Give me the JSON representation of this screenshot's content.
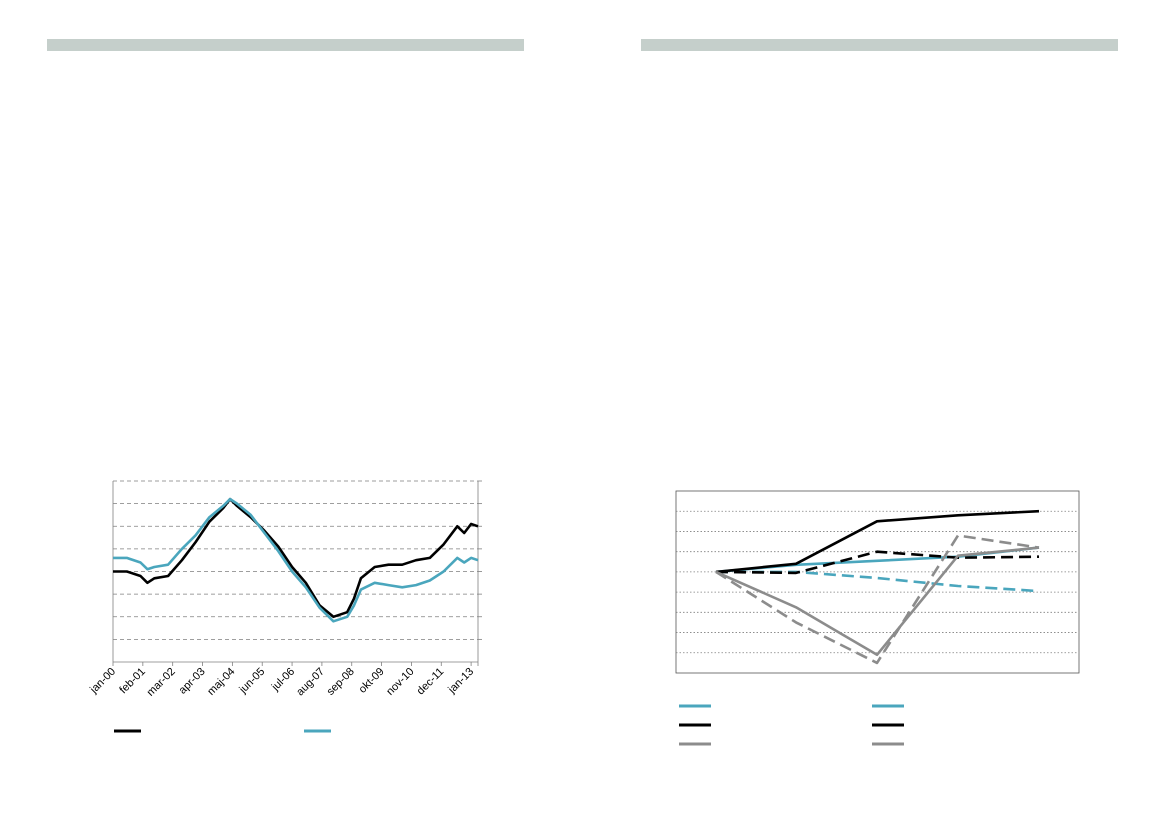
{
  "colors": {
    "header_bar": "#c5cfcb",
    "black_series": "#000000",
    "teal_series": "#4aa6bd",
    "gray_series": "#8c8c8c",
    "gridline": "#7f7f7f"
  },
  "chart_data": [
    {
      "type": "line",
      "x_tick_labels": [
        "jan-00",
        "feb-01",
        "mar-02",
        "apr-03",
        "maj-04",
        "jun-05",
        "jul-06",
        "aug-07",
        "sep-08",
        "okt-09",
        "nov-10",
        "dec-11",
        "jan-13"
      ],
      "grid": true,
      "grid_style": "dashed",
      "y_gridline_count": 8,
      "y_tick_labels_visible": false,
      "legend_position": "bottom",
      "series": [
        {
          "color": "#000000",
          "style": "solid",
          "x": [
            "2000-01",
            "2000-07",
            "2001-01",
            "2001-04",
            "2001-07",
            "2002-01",
            "2002-07",
            "2003-01",
            "2003-07",
            "2004-01",
            "2004-04",
            "2004-07",
            "2005-01",
            "2005-07",
            "2006-01",
            "2006-07",
            "2007-01",
            "2007-07",
            "2008-01",
            "2008-07",
            "2008-10",
            "2009-01",
            "2009-07",
            "2010-01",
            "2010-07",
            "2011-01",
            "2011-07",
            "2012-01",
            "2012-07",
            "2012-10",
            "2013-01",
            "2013-04"
          ],
          "values": [
            0.0,
            0.0,
            -0.2,
            -0.5,
            -0.3,
            -0.2,
            0.5,
            1.3,
            2.2,
            2.8,
            3.2,
            2.9,
            2.4,
            1.8,
            1.1,
            0.2,
            -0.5,
            -1.5,
            -2.0,
            -1.8,
            -1.2,
            -0.3,
            0.2,
            0.3,
            0.3,
            0.5,
            0.6,
            1.2,
            2.0,
            1.7,
            2.1,
            2.0
          ]
        },
        {
          "color": "#4aa6bd",
          "style": "solid",
          "x": [
            "2000-01",
            "2000-07",
            "2001-01",
            "2001-04",
            "2001-07",
            "2002-01",
            "2002-07",
            "2003-01",
            "2003-07",
            "2004-01",
            "2004-04",
            "2004-07",
            "2005-01",
            "2005-07",
            "2006-01",
            "2006-07",
            "2007-01",
            "2007-07",
            "2008-01",
            "2008-07",
            "2008-10",
            "2009-01",
            "2009-07",
            "2010-01",
            "2010-07",
            "2011-01",
            "2011-07",
            "2012-01",
            "2012-07",
            "2012-10",
            "2013-01",
            "2013-04"
          ],
          "values": [
            0.6,
            0.6,
            0.4,
            0.1,
            0.2,
            0.3,
            1.0,
            1.6,
            2.4,
            2.9,
            3.2,
            3.0,
            2.5,
            1.7,
            0.9,
            0.0,
            -0.7,
            -1.6,
            -2.2,
            -2.0,
            -1.5,
            -0.8,
            -0.5,
            -0.6,
            -0.7,
            -0.6,
            -0.4,
            0.0,
            0.6,
            0.4,
            0.6,
            0.5
          ]
        }
      ]
    },
    {
      "type": "line",
      "x": [
        0,
        1,
        2,
        3,
        4
      ],
      "grid": true,
      "grid_style": "dotted",
      "y_gridline_count": 9,
      "x_tick_labels_visible": false,
      "y_tick_labels_visible": false,
      "legend_position": "bottom",
      "series": [
        {
          "color": "#4aa6bd",
          "style": "solid",
          "values": [
            0.0,
            0.35,
            0.55,
            0.75,
            1.2
          ]
        },
        {
          "color": "#4aa6bd",
          "style": "dashed",
          "values": [
            0.0,
            0.0,
            -0.3,
            -0.7,
            -0.95
          ]
        },
        {
          "color": "#000000",
          "style": "solid",
          "values": [
            0.0,
            0.4,
            2.5,
            2.8,
            3.0
          ]
        },
        {
          "color": "#000000",
          "style": "dashed",
          "values": [
            0.0,
            -0.05,
            1.0,
            0.7,
            0.75
          ]
        },
        {
          "color": "#8c8c8c",
          "style": "solid",
          "values": [
            0.0,
            -1.75,
            -4.1,
            0.8,
            1.2
          ]
        },
        {
          "color": "#8c8c8c",
          "style": "dashed",
          "values": [
            0.0,
            -2.5,
            -4.5,
            1.8,
            1.2
          ]
        }
      ]
    }
  ]
}
